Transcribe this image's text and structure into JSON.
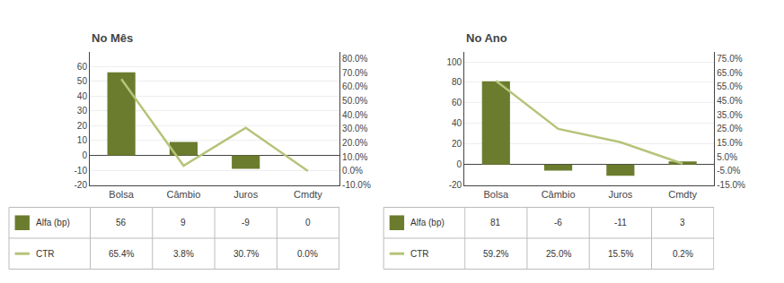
{
  "chart_data": [
    {
      "type": "bar",
      "title": "No Mês",
      "categories": [
        "Bolsa",
        "Câmbio",
        "Juros",
        "Cmdty"
      ],
      "series": [
        {
          "name": "Alfa (bp)",
          "type": "bar",
          "color": "#6b7c2e",
          "values": [
            56,
            9,
            -9,
            0
          ]
        },
        {
          "name": "CTR",
          "type": "line",
          "axis": "y2",
          "color": "#b5c47a",
          "values": [
            0.654,
            0.038,
            0.307,
            0.0
          ],
          "value_labels": [
            "65.4%",
            "3.8%",
            "30.7%",
            "0.0%"
          ]
        }
      ],
      "ylim": [
        -20,
        70
      ],
      "yticks": [
        -20,
        -10,
        0,
        10,
        20,
        30,
        40,
        50,
        60
      ],
      "y2lim": [
        -0.1,
        0.85
      ],
      "y2ticks": [
        {
          "value": -0.1,
          "label": "-10.0%"
        },
        {
          "value": 0.0,
          "label": "0.0%"
        },
        {
          "value": 0.1,
          "label": "10.0%"
        },
        {
          "value": 0.2,
          "label": "20.0%"
        },
        {
          "value": 0.3,
          "label": "30.0%"
        },
        {
          "value": 0.4,
          "label": "40.0%"
        },
        {
          "value": 0.5,
          "label": "50.0%"
        },
        {
          "value": 0.6,
          "label": "60.0%"
        },
        {
          "value": 0.7,
          "label": "70.0%"
        },
        {
          "value": 0.8,
          "label": "80.0%"
        }
      ],
      "grid": true,
      "data_labels": true
    },
    {
      "type": "bar",
      "title": "No Ano",
      "categories": [
        "Bolsa",
        "Câmbio",
        "Juros",
        "Cmdty"
      ],
      "series": [
        {
          "name": "Alfa (bp)",
          "type": "bar",
          "color": "#6b7c2e",
          "values": [
            81,
            -6,
            -11,
            3
          ]
        },
        {
          "name": "CTR",
          "type": "line",
          "axis": "y2",
          "color": "#b5c47a",
          "values": [
            0.592,
            0.25,
            0.155,
            0.002
          ],
          "value_labels": [
            "59.2%",
            "25.0%",
            "15.5%",
            "0.2%"
          ]
        }
      ],
      "ylim": [
        -20,
        110
      ],
      "yticks": [
        -20,
        0,
        20,
        40,
        60,
        80,
        100
      ],
      "y2lim": [
        -0.15,
        0.8
      ],
      "y2ticks": [
        {
          "value": -0.15,
          "label": "-15.0%"
        },
        {
          "value": -0.05,
          "label": "-5.0%"
        },
        {
          "value": 0.05,
          "label": "5.0%"
        },
        {
          "value": 0.15,
          "label": "15.0%"
        },
        {
          "value": 0.25,
          "label": "25.0%"
        },
        {
          "value": 0.35,
          "label": "35.0%"
        },
        {
          "value": 0.45,
          "label": "45.0%"
        },
        {
          "value": 0.55,
          "label": "55.0%"
        },
        {
          "value": 0.65,
          "label": "65.0%"
        },
        {
          "value": 0.75,
          "label": "75.0%"
        }
      ],
      "grid": true,
      "data_labels": true
    }
  ]
}
